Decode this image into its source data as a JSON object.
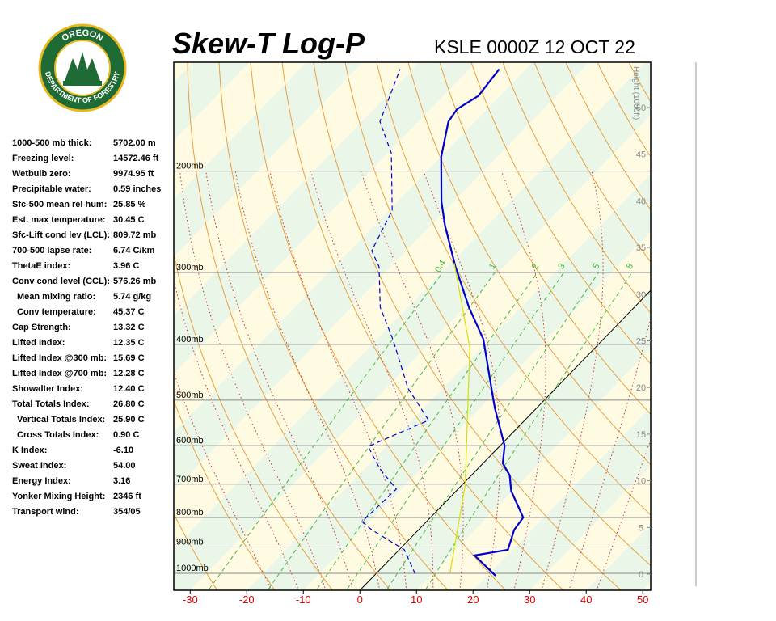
{
  "logo": {
    "top": "OREGON",
    "bottom": "DEPARTMENT OF FORESTRY"
  },
  "indices": [
    {
      "label": "1000-500 mb thick:",
      "value": "5702.00 m"
    },
    {
      "label": "Freezing level:",
      "value": "14572.46 ft"
    },
    {
      "label": "Wetbulb zero:",
      "value": "9974.95 ft"
    },
    {
      "label": "Precipitable water:",
      "value": "0.59 inches"
    },
    {
      "label": "Sfc-500 mean rel hum:",
      "value": "25.85 %"
    },
    {
      "label": "Est. max temperature:",
      "value": "30.45 C"
    },
    {
      "label": "Sfc-Lift cond lev (LCL):",
      "value": "809.72 mb"
    },
    {
      "label": "700-500 lapse rate:",
      "value": "6.74 C/km"
    },
    {
      "label": "ThetaE index:",
      "value": "3.96 C"
    },
    {
      "label": "Conv cond level (CCL):",
      "value": "576.26 mb"
    },
    {
      "label": "Mean mixing ratio:",
      "value": "5.74 g/kg"
    },
    {
      "label": "Conv temperature:",
      "value": "45.37 C"
    },
    {
      "label": "Cap Strength:",
      "value": "13.32 C"
    },
    {
      "label": "Lifted Index:",
      "value": "12.35 C"
    },
    {
      "label": "Lifted Index @300 mb:",
      "value": "15.69 C"
    },
    {
      "label": "Lifted Index @700 mb:",
      "value": "12.28 C"
    },
    {
      "label": "Showalter Index:",
      "value": "12.40 C"
    },
    {
      "label": "Total Totals Index:",
      "value": "26.80 C"
    },
    {
      "label": "Vertical Totals Index:",
      "value": "25.90 C"
    },
    {
      "label": "Cross Totals Index:",
      "value": "0.90 C"
    },
    {
      "label": "K Index:",
      "value": "-6.10"
    },
    {
      "label": "Sweat Index:",
      "value": "54.00"
    },
    {
      "label": "Energy Index:",
      "value": "3.16"
    },
    {
      "label": "Yonker Mixing Height:",
      "value": "2346 ft"
    },
    {
      "label": "Transport wind:",
      "value": "354/05"
    }
  ],
  "chart_data": {
    "type": "skew-t",
    "title": "Skew-T Log-P",
    "subtitle": "KSLE 0000Z 12 OCT 22",
    "xlim": [
      -32.9,
      51.4
    ],
    "xticks": [
      -30,
      -20,
      -10,
      0,
      10,
      20,
      30,
      40,
      50
    ],
    "plim": [
      1070,
      129
    ],
    "pticks": [
      {
        "value": 200,
        "label": "200mb"
      },
      {
        "value": 300,
        "label": "300mb"
      },
      {
        "value": 400,
        "label": "400mb"
      },
      {
        "value": 500,
        "label": "500mb"
      },
      {
        "value": 600,
        "label": "600mb"
      },
      {
        "value": 700,
        "label": "700mb"
      },
      {
        "value": 800,
        "label": "800mb"
      },
      {
        "value": 900,
        "label": "900mb"
      },
      {
        "value": 1000,
        "label": "1000mb"
      }
    ],
    "height_label": "Height (1000ft)",
    "height_lim": [
      0,
      50
    ],
    "height_ticks": [
      0,
      5,
      10,
      15,
      20,
      25,
      30,
      35,
      40,
      45,
      50
    ],
    "mixing_ratios": [
      {
        "value": 0.4,
        "label": "0.4"
      },
      1,
      2,
      3,
      5,
      8
    ],
    "series": [
      {
        "color": "#0000cc",
        "style": "solid",
        "pressure": [
          1010,
          931,
          910,
          840,
          800,
          719,
          676,
          644,
          600,
          517,
          492,
          392,
          345,
          293,
          249,
          226,
          189,
          164,
          156,
          148,
          133
        ],
        "values": [
          21.5,
          14.3,
          19.2,
          16.9,
          16.4,
          9.7,
          6.8,
          3.5,
          0.8,
          -7.3,
          -9.8,
          -21.2,
          -29.2,
          -38.6,
          -47.4,
          -52.2,
          -59.9,
          -64.7,
          -65.3,
          -63.8,
          -64.7
        ]
      },
      {
        "color": "#0000cc",
        "style": "dashed",
        "pressure": [
          1003,
          910,
          840,
          813,
          714,
          659,
          602,
          542,
          477,
          392,
          345,
          293,
          275,
          234,
          186,
          164,
          133
        ],
        "values": [
          7.0,
          0.9,
          -8.3,
          -11.4,
          -10.9,
          -17.2,
          -23.2,
          -17.0,
          -26.1,
          -37.2,
          -44.9,
          -52.1,
          -56.1,
          -59.4,
          -69.4,
          -76.8,
          -82.2
        ]
      },
      {
        "color": "#dddd00",
        "style": "solid",
        "pressure": [
          997,
          703,
          405,
          289
        ],
        "values": [
          12.9,
          0.6,
          -22.2,
          -39.4
        ]
      }
    ]
  }
}
